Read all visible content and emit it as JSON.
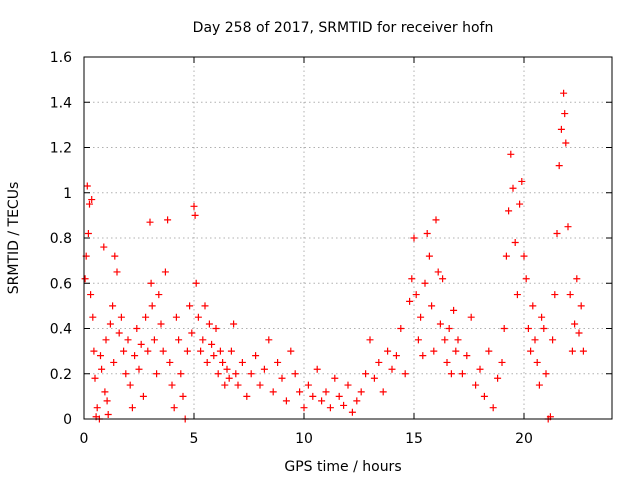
{
  "chart_data": {
    "type": "scatter",
    "title": "Day 258 of 2017, SRMTID for receiver hofn",
    "xlabel": "GPS time / hours",
    "ylabel": "SRMTID / TECUs",
    "xlim": [
      0,
      24
    ],
    "ylim": [
      0,
      1.6
    ],
    "xticks": [
      0,
      5,
      10,
      15,
      20
    ],
    "xtick_labels": [
      "0",
      "5",
      "10",
      "15",
      "20"
    ],
    "yticks": [
      0,
      0.2,
      0.4,
      0.6,
      0.8,
      1,
      1.2,
      1.4,
      1.6
    ],
    "ytick_labels": [
      "0",
      "0.2",
      "0.4",
      "0.6",
      "0.8",
      "1",
      "1.2",
      "1.4",
      "1.6"
    ],
    "grid": true,
    "marker": "plus",
    "series": [
      {
        "name": "SRMTID",
        "color": "#ff0000",
        "points": [
          [
            0.05,
            0.62
          ],
          [
            0.1,
            0.72
          ],
          [
            0.15,
            1.03
          ],
          [
            0.2,
            0.82
          ],
          [
            0.25,
            0.95
          ],
          [
            0.3,
            0.55
          ],
          [
            0.35,
            0.97
          ],
          [
            0.4,
            0.45
          ],
          [
            0.45,
            0.3
          ],
          [
            0.5,
            0.18
          ],
          [
            0.55,
            0.01
          ],
          [
            0.6,
            0.05
          ],
          [
            0.7,
            0.0
          ],
          [
            0.75,
            0.28
          ],
          [
            0.8,
            0.22
          ],
          [
            0.9,
            0.76
          ],
          [
            0.95,
            0.12
          ],
          [
            1.0,
            0.35
          ],
          [
            1.05,
            0.08
          ],
          [
            1.1,
            0.02
          ],
          [
            1.2,
            0.42
          ],
          [
            1.3,
            0.5
          ],
          [
            1.35,
            0.25
          ],
          [
            1.4,
            0.72
          ],
          [
            1.5,
            0.65
          ],
          [
            1.6,
            0.38
          ],
          [
            1.7,
            0.45
          ],
          [
            1.8,
            0.3
          ],
          [
            1.9,
            0.2
          ],
          [
            2.0,
            0.35
          ],
          [
            2.1,
            0.15
          ],
          [
            2.2,
            0.05
          ],
          [
            2.3,
            0.28
          ],
          [
            2.4,
            0.4
          ],
          [
            2.5,
            0.22
          ],
          [
            2.6,
            0.33
          ],
          [
            2.7,
            0.1
          ],
          [
            2.8,
            0.45
          ],
          [
            2.9,
            0.3
          ],
          [
            3.0,
            0.87
          ],
          [
            3.05,
            0.6
          ],
          [
            3.1,
            0.5
          ],
          [
            3.2,
            0.35
          ],
          [
            3.3,
            0.2
          ],
          [
            3.4,
            0.55
          ],
          [
            3.5,
            0.42
          ],
          [
            3.6,
            0.3
          ],
          [
            3.7,
            0.65
          ],
          [
            3.8,
            0.88
          ],
          [
            3.9,
            0.25
          ],
          [
            4.0,
            0.15
          ],
          [
            4.1,
            0.05
          ],
          [
            4.2,
            0.45
          ],
          [
            4.3,
            0.35
          ],
          [
            4.4,
            0.2
          ],
          [
            4.5,
            0.1
          ],
          [
            4.6,
            0.0
          ],
          [
            4.7,
            0.3
          ],
          [
            4.8,
            0.5
          ],
          [
            4.9,
            0.38
          ],
          [
            5.0,
            0.94
          ],
          [
            5.05,
            0.9
          ],
          [
            5.1,
            0.6
          ],
          [
            5.2,
            0.45
          ],
          [
            5.3,
            0.3
          ],
          [
            5.4,
            0.35
          ],
          [
            5.5,
            0.5
          ],
          [
            5.6,
            0.25
          ],
          [
            5.7,
            0.42
          ],
          [
            5.8,
            0.33
          ],
          [
            5.9,
            0.28
          ],
          [
            6.0,
            0.4
          ],
          [
            6.1,
            0.2
          ],
          [
            6.2,
            0.3
          ],
          [
            6.3,
            0.25
          ],
          [
            6.4,
            0.15
          ],
          [
            6.5,
            0.22
          ],
          [
            6.6,
            0.18
          ],
          [
            6.7,
            0.3
          ],
          [
            6.8,
            0.42
          ],
          [
            6.9,
            0.2
          ],
          [
            7.0,
            0.15
          ],
          [
            7.2,
            0.25
          ],
          [
            7.4,
            0.1
          ],
          [
            7.6,
            0.2
          ],
          [
            7.8,
            0.28
          ],
          [
            8.0,
            0.15
          ],
          [
            8.2,
            0.22
          ],
          [
            8.4,
            0.35
          ],
          [
            8.6,
            0.12
          ],
          [
            8.8,
            0.25
          ],
          [
            9.0,
            0.18
          ],
          [
            9.2,
            0.08
          ],
          [
            9.4,
            0.3
          ],
          [
            9.6,
            0.2
          ],
          [
            9.8,
            0.12
          ],
          [
            10.0,
            0.05
          ],
          [
            10.2,
            0.15
          ],
          [
            10.4,
            0.1
          ],
          [
            10.6,
            0.22
          ],
          [
            10.8,
            0.08
          ],
          [
            11.0,
            0.12
          ],
          [
            11.2,
            0.05
          ],
          [
            11.4,
            0.18
          ],
          [
            11.6,
            0.1
          ],
          [
            11.8,
            0.06
          ],
          [
            12.0,
            0.15
          ],
          [
            12.2,
            0.03
          ],
          [
            12.4,
            0.08
          ],
          [
            12.6,
            0.12
          ],
          [
            12.8,
            0.2
          ],
          [
            13.0,
            0.35
          ],
          [
            13.2,
            0.18
          ],
          [
            13.4,
            0.25
          ],
          [
            13.6,
            0.12
          ],
          [
            13.8,
            0.3
          ],
          [
            14.0,
            0.22
          ],
          [
            14.2,
            0.28
          ],
          [
            14.4,
            0.4
          ],
          [
            14.6,
            0.2
          ],
          [
            14.8,
            0.52
          ],
          [
            14.9,
            0.62
          ],
          [
            15.0,
            0.8
          ],
          [
            15.1,
            0.55
          ],
          [
            15.2,
            0.35
          ],
          [
            15.3,
            0.45
          ],
          [
            15.4,
            0.28
          ],
          [
            15.5,
            0.6
          ],
          [
            15.6,
            0.82
          ],
          [
            15.7,
            0.72
          ],
          [
            15.8,
            0.5
          ],
          [
            15.9,
            0.3
          ],
          [
            16.0,
            0.88
          ],
          [
            16.1,
            0.65
          ],
          [
            16.2,
            0.42
          ],
          [
            16.3,
            0.62
          ],
          [
            16.4,
            0.35
          ],
          [
            16.5,
            0.25
          ],
          [
            16.6,
            0.4
          ],
          [
            16.7,
            0.2
          ],
          [
            16.8,
            0.48
          ],
          [
            16.9,
            0.3
          ],
          [
            17.0,
            0.35
          ],
          [
            17.2,
            0.2
          ],
          [
            17.4,
            0.28
          ],
          [
            17.6,
            0.45
          ],
          [
            17.8,
            0.15
          ],
          [
            18.0,
            0.22
          ],
          [
            18.2,
            0.1
          ],
          [
            18.4,
            0.3
          ],
          [
            18.6,
            0.05
          ],
          [
            18.8,
            0.18
          ],
          [
            19.0,
            0.25
          ],
          [
            19.1,
            0.4
          ],
          [
            19.2,
            0.72
          ],
          [
            19.3,
            0.92
          ],
          [
            19.4,
            1.17
          ],
          [
            19.5,
            1.02
          ],
          [
            19.6,
            0.78
          ],
          [
            19.7,
            0.55
          ],
          [
            19.8,
            0.95
          ],
          [
            19.9,
            1.05
          ],
          [
            20.0,
            0.72
          ],
          [
            20.1,
            0.62
          ],
          [
            20.2,
            0.4
          ],
          [
            20.3,
            0.3
          ],
          [
            20.4,
            0.5
          ],
          [
            20.5,
            0.35
          ],
          [
            20.6,
            0.25
          ],
          [
            20.7,
            0.15
          ],
          [
            20.8,
            0.45
          ],
          [
            20.9,
            0.4
          ],
          [
            21.0,
            0.2
          ],
          [
            21.1,
            0.0
          ],
          [
            21.2,
            0.01
          ],
          [
            21.3,
            0.35
          ],
          [
            21.4,
            0.55
          ],
          [
            21.5,
            0.82
          ],
          [
            21.6,
            1.12
          ],
          [
            21.7,
            1.28
          ],
          [
            21.8,
            1.44
          ],
          [
            21.85,
            1.35
          ],
          [
            21.9,
            1.22
          ],
          [
            22.0,
            0.85
          ],
          [
            22.1,
            0.55
          ],
          [
            22.2,
            0.3
          ],
          [
            22.3,
            0.42
          ],
          [
            22.4,
            0.62
          ],
          [
            22.5,
            0.38
          ],
          [
            22.6,
            0.5
          ],
          [
            22.7,
            0.3
          ]
        ]
      }
    ]
  }
}
